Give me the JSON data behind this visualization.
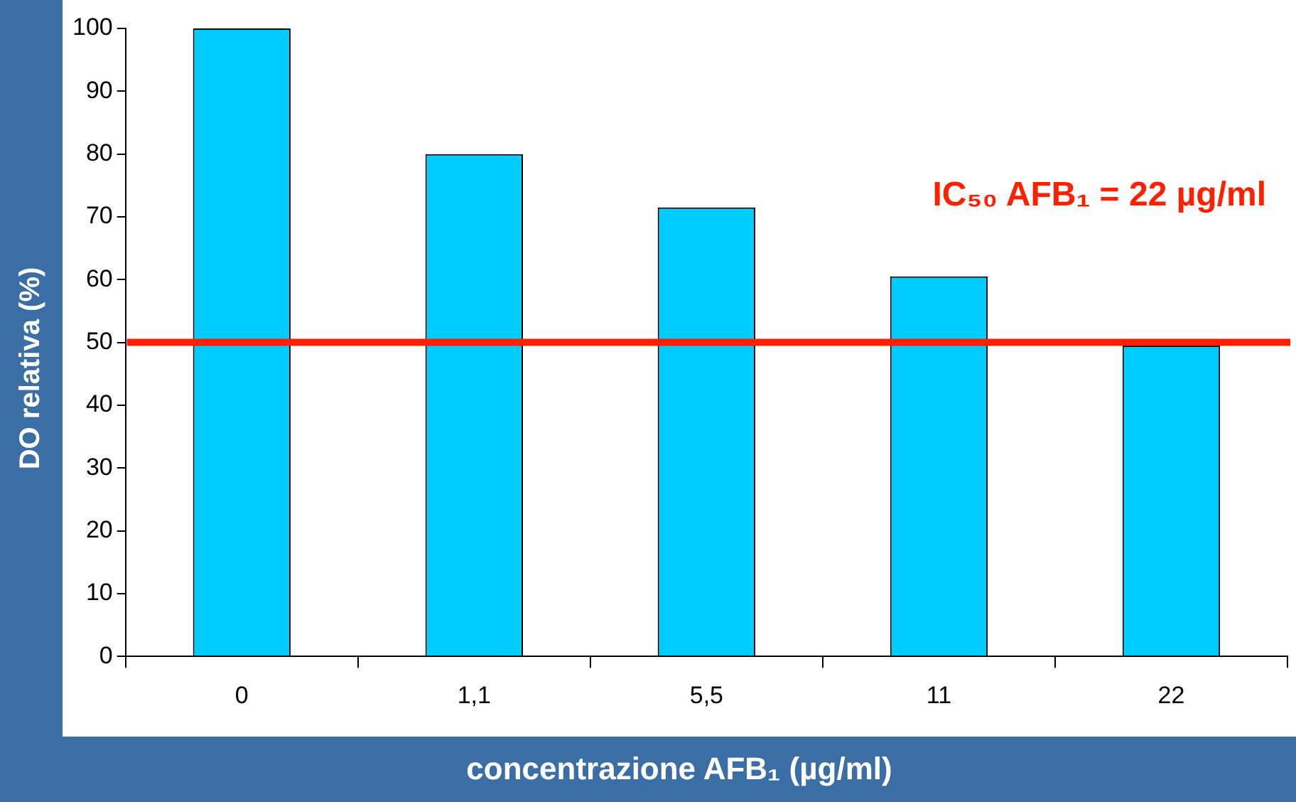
{
  "chart_data": {
    "type": "bar",
    "xlabel": "concentrazione AFB₁ (µg/ml)",
    "ylabel": "DO relativa (%)",
    "categories": [
      "0",
      "1,1",
      "5,5",
      "11",
      "22"
    ],
    "values": [
      100,
      80,
      71.5,
      60.5,
      49.5
    ],
    "color": "#00ccff",
    "ylim": [
      0,
      100
    ],
    "yticks": [
      0,
      10,
      20,
      30,
      40,
      50,
      60,
      70,
      80,
      90,
      100
    ],
    "grid": false,
    "ref_lines": [
      {
        "axis": "y",
        "value": 50,
        "color": "#ff2000"
      }
    ],
    "annotations": [
      "IC₅₀ AFB₁ = 22 µg/ml"
    ]
  }
}
